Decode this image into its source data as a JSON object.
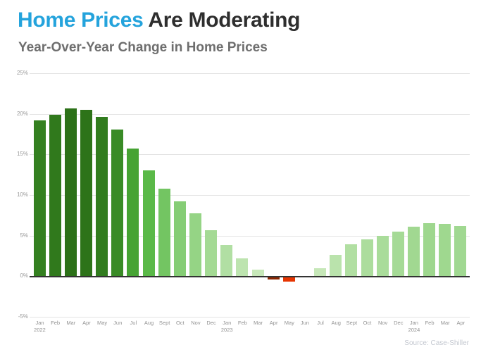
{
  "header": {
    "title_accent": "Home Prices",
    "title_rest": " Are Moderating",
    "subtitle": "Year-Over-Year Change in Home Prices"
  },
  "footer": {
    "source": "Source: Case-Shiller"
  },
  "colors": {
    "title_accent": "#24a3dc",
    "title_text": "#2e2e2e",
    "subtitle_text": "#6e6e6e",
    "gridline": "#e3e3e3",
    "zero_axis_line": "#333333",
    "y_tick_text": "#9a9a9a",
    "x_tick_text": "#929292",
    "source_text": "#c4c8d0"
  },
  "chart_data": {
    "type": "bar",
    "title": "Year-Over-Year Change in Home Prices",
    "xlabel": "",
    "ylabel": "",
    "ylim": [
      -5,
      25
    ],
    "grid": true,
    "legend": false,
    "y_ticks": [
      {
        "value": 25,
        "label": "25%"
      },
      {
        "value": 20,
        "label": "20%"
      },
      {
        "value": 15,
        "label": "15%"
      },
      {
        "value": 10,
        "label": "10%"
      },
      {
        "value": 5,
        "label": "5%"
      },
      {
        "value": 0,
        "label": "0%"
      },
      {
        "value": -5,
        "label": "-5%"
      }
    ],
    "categories": [
      "Jan",
      "Feb",
      "Mar",
      "Apr",
      "May",
      "Jun",
      "Jul",
      "Aug",
      "Sept",
      "Oct",
      "Nov",
      "Dec",
      "Jan",
      "Feb",
      "Mar",
      "Apr",
      "May",
      "Jun",
      "Jul",
      "Aug",
      "Sept",
      "Oct",
      "Nov",
      "Dec",
      "Jan",
      "Feb",
      "Mar",
      "Apr"
    ],
    "year_labels": [
      {
        "index": 0,
        "label": "2022"
      },
      {
        "index": 12,
        "label": "2023"
      },
      {
        "index": 24,
        "label": "2024"
      }
    ],
    "values": [
      19.2,
      19.9,
      20.7,
      20.5,
      19.6,
      18.1,
      15.7,
      13.0,
      10.8,
      9.2,
      7.7,
      5.7,
      3.8,
      2.2,
      0.8,
      -0.2,
      -0.5,
      0.0,
      1.0,
      2.6,
      3.9,
      4.5,
      5.0,
      5.5,
      6.1,
      6.5,
      6.4,
      6.2
    ],
    "bar_colors": {
      "ramp": [
        {
          "value": 0,
          "color": "#cdeabf"
        },
        {
          "value": 8,
          "color": "#93d383"
        },
        {
          "value": 14,
          "color": "#4fb43c"
        },
        {
          "value": 21,
          "color": "#2a6e16"
        }
      ],
      "negative": "#e63502",
      "negative_small": "#8b2500",
      "negative_threshold": -0.4
    }
  }
}
